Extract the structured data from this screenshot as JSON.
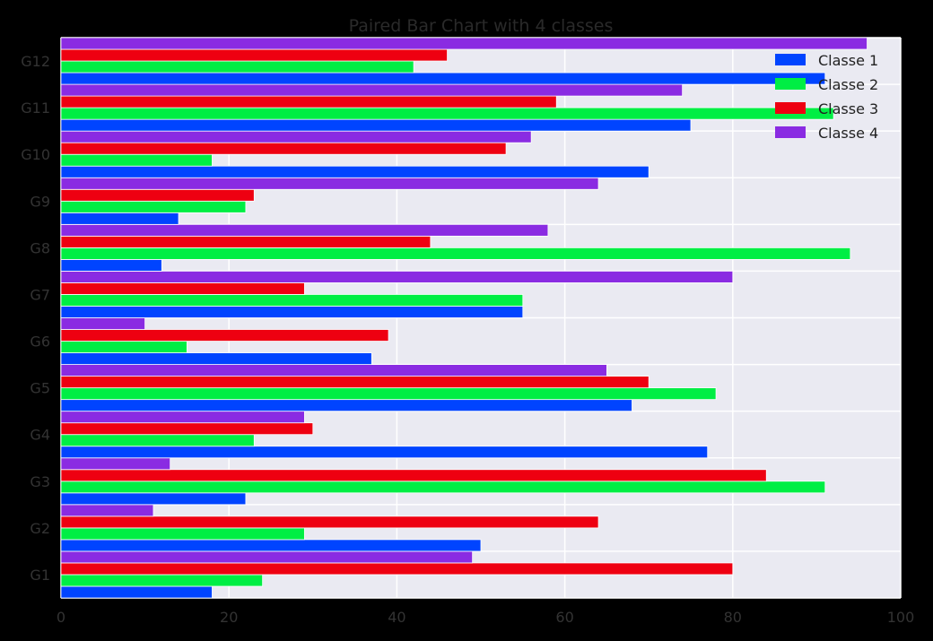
{
  "chart_data": {
    "type": "bar",
    "orientation": "horizontal",
    "title": "Paired Bar Chart with 4 classes",
    "xlabel": "",
    "ylabel": "",
    "xlim": [
      0,
      100
    ],
    "xticks": [
      0,
      20,
      40,
      60,
      80,
      100
    ],
    "grid": true,
    "legend_position": "top-right",
    "categories": [
      "G1",
      "G2",
      "G3",
      "G4",
      "G5",
      "G6",
      "G7",
      "G8",
      "G9",
      "G10",
      "G11",
      "G12"
    ],
    "series": [
      {
        "name": "Classe 1",
        "color": "#0044ff",
        "values": [
          18,
          50,
          22,
          77,
          68,
          37,
          55,
          12,
          14,
          70,
          75,
          91
        ]
      },
      {
        "name": "Classe 2",
        "color": "#00ee44",
        "values": [
          24,
          29,
          91,
          23,
          78,
          15,
          55,
          94,
          22,
          18,
          92,
          42
        ]
      },
      {
        "name": "Classe 3",
        "color": "#ee0011",
        "values": [
          80,
          64,
          84,
          30,
          70,
          39,
          29,
          44,
          23,
          53,
          59,
          46
        ]
      },
      {
        "name": "Classe 4",
        "color": "#8a2be2",
        "values": [
          49,
          11,
          13,
          29,
          65,
          10,
          80,
          58,
          64,
          56,
          74,
          96
        ]
      }
    ]
  },
  "colors": {
    "page_background": "#000000",
    "plot_background": "#eaeaf2",
    "grid": "#ffffff",
    "text": "#333333"
  }
}
